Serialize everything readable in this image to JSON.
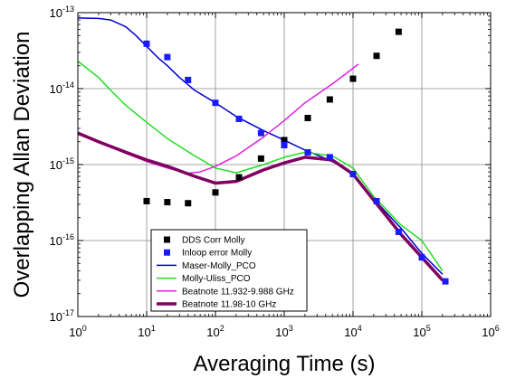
{
  "chart_data": {
    "type": "scatter",
    "xlabel": "Averaging Time (s)",
    "ylabel": "Overlapping Allan Deviation",
    "xscale": "log",
    "yscale": "log",
    "xlim": [
      1,
      1000000
    ],
    "ylim": [
      1e-17,
      1e-13
    ],
    "grid": true,
    "legend_position": "bottom-left",
    "x_ticks": [
      {
        "value": 1,
        "base": "10",
        "exp": "0"
      },
      {
        "value": 10,
        "base": "10",
        "exp": "1"
      },
      {
        "value": 100,
        "base": "10",
        "exp": "2"
      },
      {
        "value": 1000,
        "base": "10",
        "exp": "3"
      },
      {
        "value": 10000,
        "base": "10",
        "exp": "4"
      },
      {
        "value": 100000,
        "base": "10",
        "exp": "5"
      },
      {
        "value": 1000000,
        "base": "10",
        "exp": "6"
      }
    ],
    "y_ticks": [
      {
        "value": 1e-17,
        "base": "10",
        "exp": "-17"
      },
      {
        "value": 1e-16,
        "base": "10",
        "exp": "-16"
      },
      {
        "value": 1e-15,
        "base": "10",
        "exp": "-15"
      },
      {
        "value": 1e-14,
        "base": "10",
        "exp": "-14"
      },
      {
        "value": 1e-13,
        "base": "10",
        "exp": "-13"
      }
    ],
    "series": [
      {
        "name": "DDS Corr Molly",
        "kind": "marker",
        "color": "#000000",
        "x": [
          10,
          20,
          40,
          100,
          220,
          460,
          1000,
          2200,
          4600,
          10000,
          22000,
          46000
        ],
        "y": [
          3.3e-16,
          3.2e-16,
          3.1e-16,
          4.3e-16,
          6.8e-16,
          1.2e-15,
          2.1e-15,
          4.1e-15,
          7.2e-15,
          1.35e-14,
          2.7e-14,
          5.6e-14
        ]
      },
      {
        "name": "Inloop error Molly",
        "kind": "marker",
        "color": "#1a1aff",
        "x": [
          10,
          20,
          40,
          100,
          220,
          460,
          1000,
          2200,
          4600,
          10000,
          22000,
          46000,
          100000,
          220000
        ],
        "y": [
          3.9e-14,
          2.6e-14,
          1.3e-14,
          6.5e-15,
          4e-15,
          2.6e-15,
          1.8e-15,
          1.45e-15,
          1.25e-15,
          7.5e-16,
          3.3e-16,
          1.3e-16,
          6e-17,
          2.9e-17
        ]
      },
      {
        "name": "Maser-Molly_PCO",
        "kind": "line",
        "color": "#0000cc",
        "width": 1.5,
        "x": [
          1,
          2,
          3,
          5,
          7,
          10,
          15,
          20,
          30,
          50,
          100,
          200,
          500,
          1000,
          2000,
          4000,
          7000,
          10000,
          20000,
          50000,
          100000,
          200000
        ],
        "y": [
          8.5e-14,
          8.4e-14,
          8e-14,
          6.5e-14,
          5e-14,
          3.6e-14,
          2.5e-14,
          2e-14,
          1.4e-14,
          9.5e-15,
          6.5e-15,
          4.3e-15,
          2.8e-15,
          2.1e-15,
          1.55e-15,
          1.2e-15,
          9.5e-16,
          7.5e-16,
          3.5e-16,
          1.45e-16,
          6.8e-17,
          3.6e-17
        ]
      },
      {
        "name": "Molly-Uliss_PCO",
        "kind": "line",
        "color": "#22dd22",
        "width": 1.5,
        "x": [
          1,
          2,
          3,
          5,
          10,
          20,
          50,
          100,
          200,
          500,
          1000,
          2000,
          5000,
          10000,
          20000,
          50000,
          100000,
          200000
        ],
        "y": [
          2.3e-14,
          1.4e-14,
          9.5e-15,
          6e-15,
          3.6e-15,
          2.2e-15,
          1.3e-15,
          9e-16,
          7.8e-16,
          1e-15,
          1.25e-15,
          1.45e-15,
          1.3e-15,
          9e-16,
          3.8e-16,
          1.6e-16,
          1e-16,
          4e-17
        ]
      },
      {
        "name": "Beatnote 11.932-9.988 GHz",
        "kind": "line",
        "color": "#dd22dd",
        "width": 1.5,
        "x": [
          1,
          2,
          5,
          10,
          20,
          40,
          60,
          100,
          200,
          500,
          1000,
          2000,
          5000,
          12000
        ],
        "y": [
          2.5e-15,
          2e-15,
          1.4e-15,
          1.1e-15,
          9e-16,
          7.7e-16,
          8e-16,
          9.5e-16,
          1.3e-15,
          2.3e-15,
          3.8e-15,
          6.5e-15,
          1.15e-14,
          2.1e-14
        ]
      },
      {
        "name": "Beatnote 11.98-10 GHz",
        "kind": "line",
        "color": "#800060",
        "width": 3.5,
        "x": [
          1,
          2,
          5,
          10,
          20,
          50,
          100,
          200,
          500,
          1000,
          2000,
          5000,
          10000,
          20000,
          50000,
          100000,
          200000
        ],
        "y": [
          2.6e-15,
          2e-15,
          1.45e-15,
          1.15e-15,
          9.5e-16,
          7e-16,
          5.7e-16,
          6e-16,
          8.5e-16,
          1.05e-15,
          1.25e-15,
          1.15e-15,
          7.5e-16,
          3.4e-16,
          1.2e-16,
          6e-17,
          3e-17
        ]
      }
    ]
  }
}
